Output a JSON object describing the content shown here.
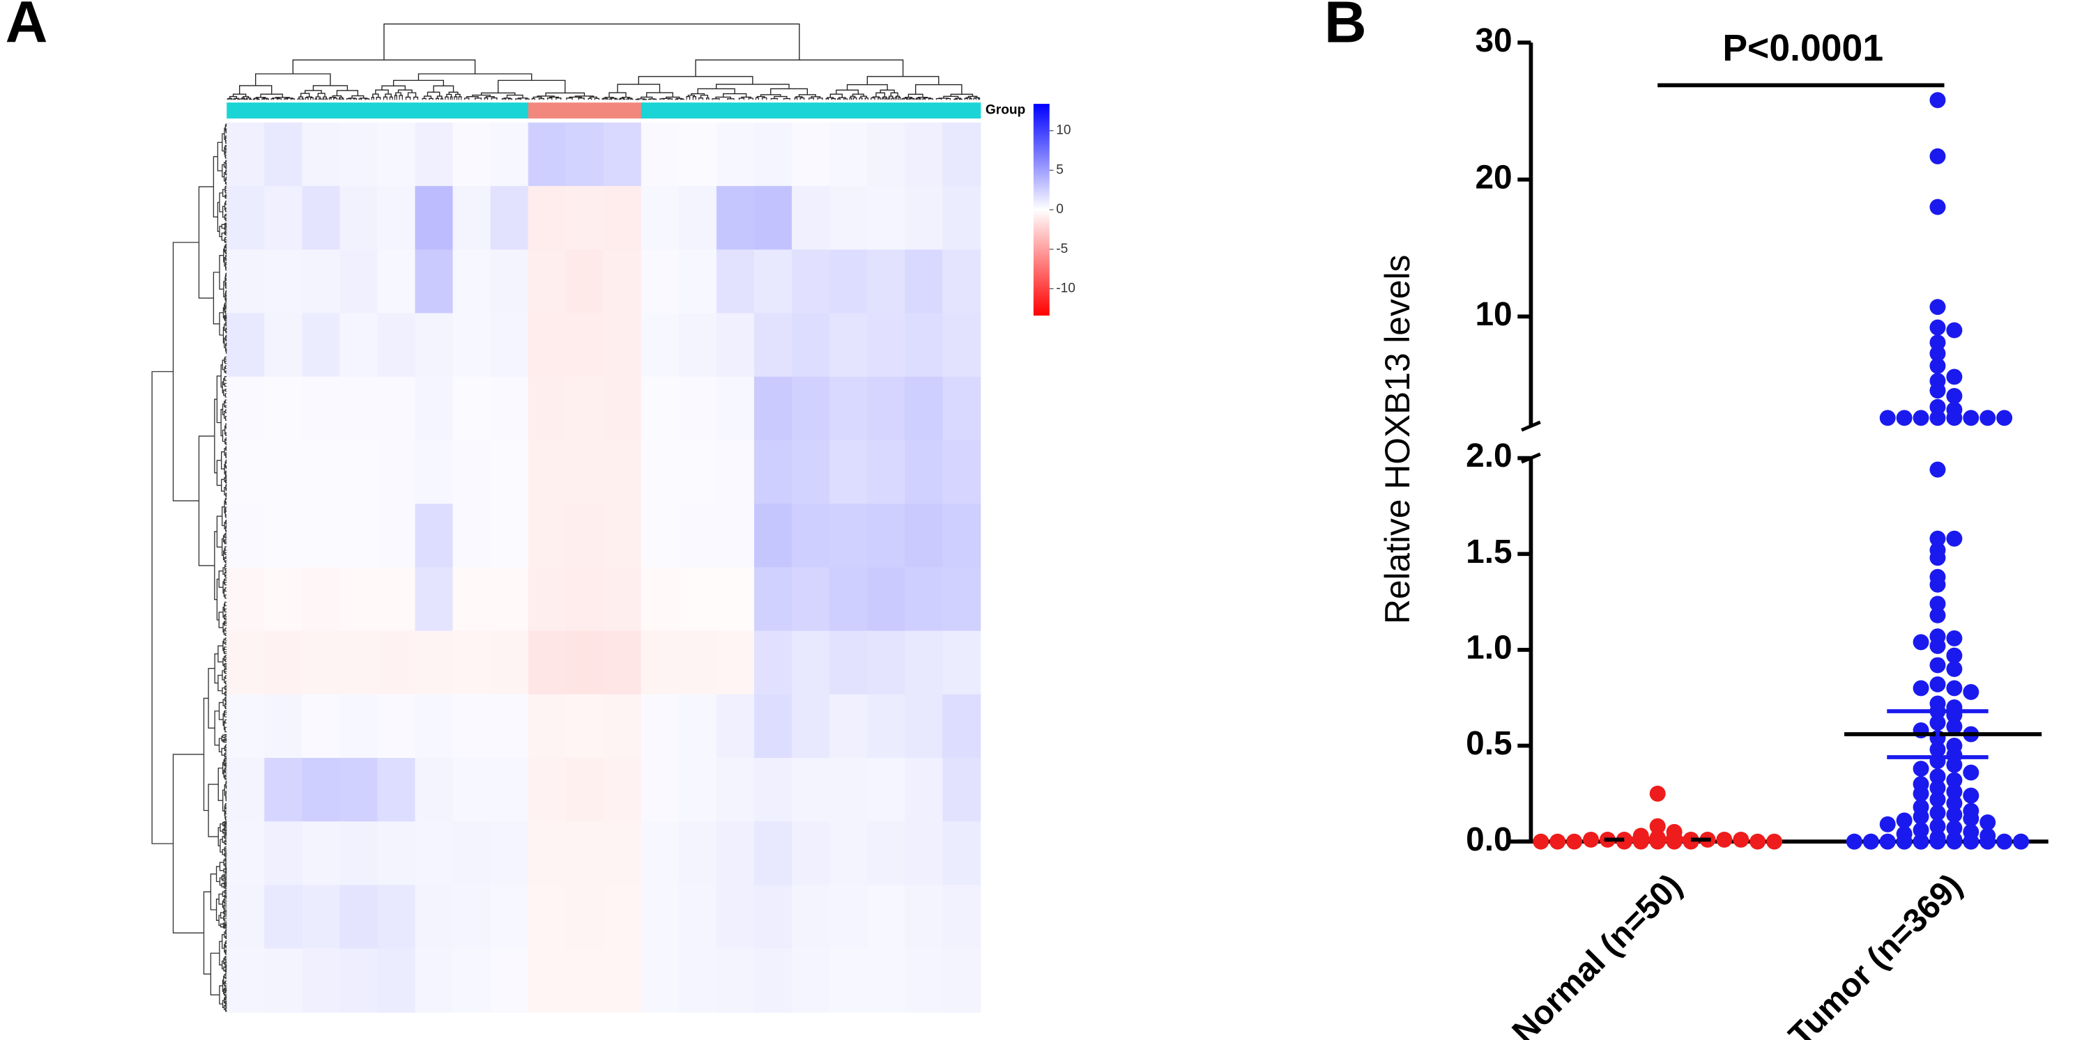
{
  "chart_data": [
    {
      "type": "heatmap",
      "panel_label": "A",
      "group_label": "Group",
      "zlim": [
        -13.4,
        13.4
      ],
      "colorscale": [
        "#ff0000",
        "#ffffff",
        "#0000ff"
      ],
      "colorbar_ticks": [
        10,
        5,
        0,
        -5,
        -10
      ],
      "col_group_colors": [
        "#1ad4d6",
        "#1ad4d6",
        "#1ad4d6",
        "#1ad4d6",
        "#1ad4d6",
        "#1ad4d6",
        "#1ad4d6",
        "#1ad4d6",
        "#f2877e",
        "#f2877e",
        "#f2877e",
        "#1ad4d6",
        "#1ad4d6",
        "#1ad4d6",
        "#1ad4d6",
        "#1ad4d6",
        "#1ad4d6",
        "#1ad4d6",
        "#1ad4d6",
        "#1ad4d6"
      ],
      "matrix": [
        [
          0.8,
          1.2,
          0.6,
          0.5,
          0.4,
          0.8,
          0.3,
          0.4,
          2.5,
          2.3,
          2.0,
          0.3,
          0.2,
          0.4,
          0.5,
          0.3,
          0.4,
          0.6,
          0.8,
          1.2
        ],
        [
          1.0,
          0.8,
          1.4,
          0.7,
          0.5,
          3.5,
          0.6,
          1.5,
          -1.0,
          -0.9,
          -1.0,
          0.4,
          0.6,
          3.0,
          3.2,
          0.8,
          0.6,
          0.5,
          0.7,
          1.0
        ],
        [
          0.6,
          0.5,
          0.6,
          0.8,
          0.4,
          2.8,
          0.4,
          0.6,
          -0.9,
          -1.1,
          -0.9,
          0.3,
          0.4,
          1.5,
          1.2,
          1.6,
          1.8,
          1.5,
          2.0,
          1.4
        ],
        [
          1.2,
          0.6,
          1.0,
          0.5,
          0.8,
          0.6,
          0.4,
          0.5,
          -1.0,
          -1.0,
          -0.9,
          0.4,
          0.6,
          0.8,
          1.5,
          1.8,
          1.4,
          1.6,
          1.8,
          1.5
        ],
        [
          0.3,
          0.2,
          0.3,
          0.3,
          0.3,
          0.5,
          0.2,
          0.3,
          -0.9,
          -0.8,
          -0.9,
          0.2,
          0.3,
          0.4,
          2.8,
          2.4,
          2.0,
          2.2,
          2.6,
          2.0
        ],
        [
          0.2,
          0.2,
          0.2,
          0.2,
          0.3,
          0.4,
          0.3,
          0.2,
          -0.8,
          -0.8,
          -0.8,
          0.2,
          0.2,
          0.3,
          2.6,
          2.3,
          1.8,
          2.0,
          2.4,
          2.2
        ],
        [
          0.3,
          0.2,
          0.2,
          0.2,
          0.3,
          1.8,
          0.3,
          0.2,
          -0.8,
          -0.9,
          -0.8,
          0.2,
          0.3,
          0.3,
          3.0,
          2.5,
          2.4,
          2.6,
          2.8,
          2.6
        ],
        [
          -0.4,
          -0.3,
          -0.4,
          -0.3,
          -0.3,
          1.4,
          -0.3,
          -0.3,
          -0.9,
          -1.0,
          -0.9,
          -0.3,
          -0.2,
          -0.2,
          2.4,
          2.2,
          2.6,
          2.8,
          2.5,
          2.4
        ],
        [
          -0.6,
          -0.7,
          -0.6,
          -0.6,
          -0.7,
          -0.6,
          -0.5,
          -0.6,
          -1.3,
          -1.4,
          -1.3,
          -0.6,
          -0.6,
          -0.5,
          1.6,
          1.2,
          1.5,
          1.4,
          1.2,
          1.0
        ],
        [
          0.4,
          0.5,
          0.3,
          0.4,
          0.3,
          0.4,
          0.3,
          0.3,
          -0.6,
          -0.5,
          -0.6,
          0.3,
          0.4,
          0.8,
          1.8,
          1.2,
          0.8,
          1.0,
          1.2,
          1.8
        ],
        [
          0.6,
          2.2,
          2.6,
          2.4,
          1.8,
          0.6,
          0.4,
          0.4,
          -0.7,
          -0.8,
          -0.7,
          0.3,
          0.4,
          0.6,
          0.8,
          0.6,
          0.6,
          0.5,
          0.8,
          1.5
        ],
        [
          0.5,
          0.8,
          0.6,
          0.7,
          0.6,
          0.5,
          0.6,
          0.5,
          -0.6,
          -0.6,
          -0.6,
          0.4,
          0.6,
          0.8,
          1.2,
          0.8,
          0.6,
          0.7,
          0.8,
          1.0
        ],
        [
          0.6,
          1.2,
          1.0,
          1.4,
          1.2,
          0.6,
          0.5,
          0.4,
          -0.5,
          -0.6,
          -0.5,
          0.4,
          0.5,
          0.8,
          0.9,
          0.6,
          0.5,
          0.4,
          0.6,
          0.7
        ],
        [
          0.5,
          0.6,
          0.8,
          0.9,
          1.0,
          0.5,
          0.4,
          0.3,
          -0.5,
          -0.5,
          -0.5,
          0.4,
          0.5,
          0.6,
          0.7,
          0.5,
          0.4,
          0.4,
          0.5,
          0.6
        ]
      ]
    },
    {
      "type": "dot_plot",
      "panel_label": "B",
      "y_label": "Relative HOXB13 levels",
      "annotation": "P<0.0001",
      "categories": [
        "Normal (n=50)",
        "Tumor (n=369)"
      ],
      "y_segments": [
        {
          "ylim": [
            0,
            2
          ],
          "yticks": [
            {
              "value": 0,
              "label": "0.0"
            },
            0.5,
            {
              "value": 1,
              "label": "1.0"
            },
            1.5,
            {
              "value": 2,
              "label": "2.0"
            }
          ]
        },
        {
          "ylim": [
            2,
            30
          ],
          "yticks": [
            10,
            20,
            30
          ]
        }
      ],
      "groups": [
        {
          "color": "#ee1c1c",
          "mean": 0.01,
          "sem": 0.006,
          "values": [
            0.25,
            0.08,
            0.05,
            0.03,
            0.02,
            0.02,
            0.01,
            0.01,
            0.01,
            0.01,
            0.01,
            0.01,
            0.01,
            0.01,
            0,
            0,
            0,
            0,
            0,
            0,
            0,
            0,
            0,
            0
          ]
        },
        {
          "color": "#1a1aef",
          "mean": 0.56,
          "sem": 0.12,
          "values": [
            25.8,
            21.7,
            18,
            10.7,
            9.2,
            9.0,
            8.1,
            7.3,
            6.4,
            5.6,
            5.3,
            4.6,
            4.2,
            3.4,
            3.2,
            2.6,
            2.6,
            2.6,
            2.6,
            2.6,
            2.6,
            2.6,
            2.6,
            1.94,
            1.58,
            1.58,
            1.52,
            1.48,
            1.38,
            1.34,
            1.24,
            1.18,
            1.07,
            1.06,
            1.04,
            1.02,
            0.97,
            0.92,
            0.9,
            0.82,
            0.8,
            0.8,
            0.78,
            0.72,
            0.7,
            0.68,
            0.66,
            0.62,
            0.6,
            0.58,
            0.56,
            0.54,
            0.5,
            0.48,
            0.45,
            0.42,
            0.4,
            0.38,
            0.36,
            0.34,
            0.32,
            0.3,
            0.28,
            0.26,
            0.25,
            0.24,
            0.22,
            0.2,
            0.18,
            0.16,
            0.15,
            0.14,
            0.13,
            0.12,
            0.11,
            0.1,
            0.09,
            0.08,
            0.07,
            0.06,
            0.05,
            0.04,
            0.03,
            0.02,
            0.01,
            0,
            0,
            0,
            0,
            0,
            0,
            0,
            0,
            0,
            0,
            0,
            0,
            0,
            0,
            0,
            0,
            0,
            0,
            0,
            0
          ]
        }
      ]
    }
  ]
}
